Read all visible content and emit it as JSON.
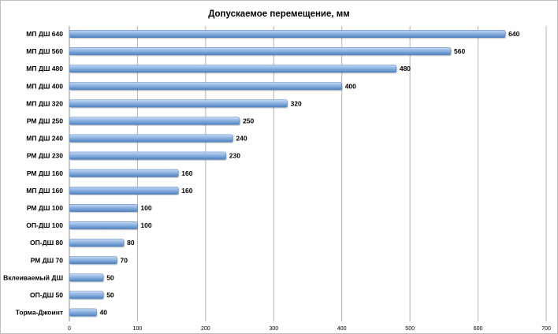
{
  "chart_data": {
    "type": "bar",
    "orientation": "horizontal",
    "title": "Допускаемое перемещение, мм",
    "xlabel": "",
    "ylabel": "",
    "categories": [
      "МП ДШ 640",
      "МП ДШ 560",
      "МП ДШ 480",
      "МП ДШ 400",
      "МП ДШ 320",
      "РМ ДШ 250",
      "МП ДШ 240",
      "РМ ДШ 230",
      "РМ ДШ 160",
      "МП ДШ 160",
      "РМ ДШ 100",
      "ОП-ДШ 100",
      "ОП-ДШ 80",
      "РМ ДШ 70",
      "Вклеиваемый ДШ",
      "ОП-ДШ 50",
      "Торма-Джоинт"
    ],
    "values": [
      640,
      560,
      480,
      400,
      320,
      250,
      240,
      230,
      160,
      160,
      100,
      100,
      80,
      70,
      50,
      50,
      40
    ],
    "xlim": [
      0,
      700
    ],
    "xticks": [
      0,
      100,
      200,
      300,
      400,
      500,
      600,
      700
    ],
    "grid": "vertical",
    "legend": "none",
    "bar_color": "#8db3e2",
    "bar_color_dark": "#4f81bd",
    "grid_color": "#b3b3b3"
  }
}
